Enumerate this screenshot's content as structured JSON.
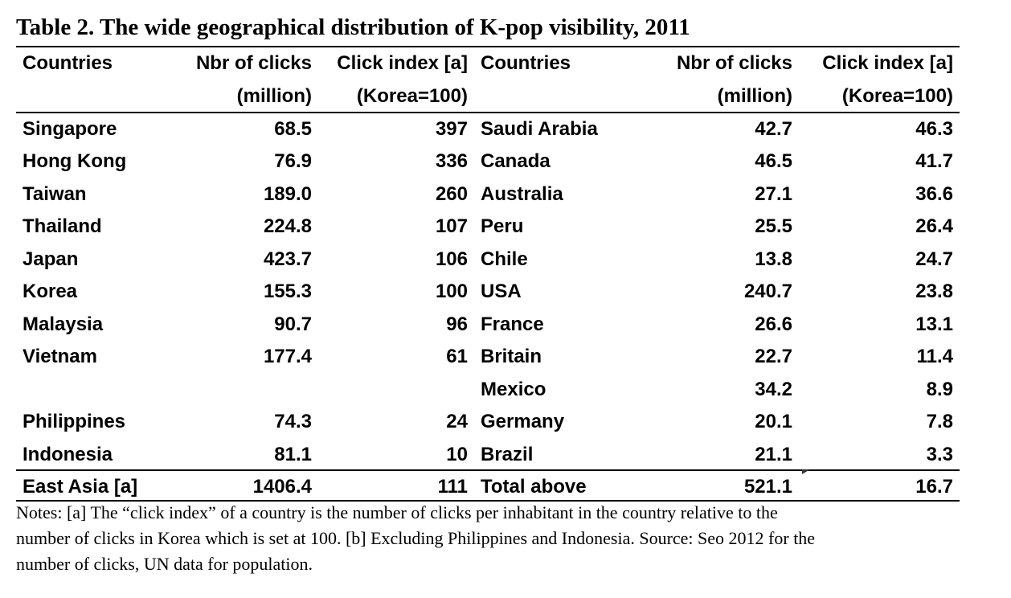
{
  "title": "Table 2. The wide geographical distribution of K-pop visibility, 2011",
  "header": {
    "left_countries": "Countries",
    "left_clicks_l1": "Nbr of clicks",
    "left_clicks_l2": "(million)",
    "left_index_l1": "Click index [a]",
    "left_index_l2": "(Korea=100)",
    "right_countries": "Countries",
    "right_clicks_l1": "Nbr of clicks",
    "right_clicks_l2": "(million)",
    "right_index_l1": "Click index [a]",
    "right_index_l2": "(Korea=100)"
  },
  "rows": [
    {
      "lc": "Singapore",
      "lk": "68.5",
      "li": "397",
      "rc": "Saudi Arabia",
      "rk": "42.7",
      "ri": "46.3"
    },
    {
      "lc": "Hong Kong",
      "lk": "76.9",
      "li": "336",
      "rc": "Canada",
      "rk": "46.5",
      "ri": "41.7"
    },
    {
      "lc": "Taiwan",
      "lk": "189.0",
      "li": "260",
      "rc": "Australia",
      "rk": "27.1",
      "ri": "36.6"
    },
    {
      "lc": "Thailand",
      "lk": "224.8",
      "li": "107",
      "rc": "Peru",
      "rk": "25.5",
      "ri": "26.4"
    },
    {
      "lc": "Japan",
      "lk": "423.7",
      "li": "106",
      "rc": "Chile",
      "rk": "13.8",
      "ri": "24.7"
    },
    {
      "lc": "Korea",
      "lk": "155.3",
      "li": "100",
      "rc": "USA",
      "rk": "240.7",
      "ri": "23.8"
    },
    {
      "lc": "Malaysia",
      "lk": "90.7",
      "li": "96",
      "rc": "France",
      "rk": "26.6",
      "ri": "13.1"
    },
    {
      "lc": "Vietnam",
      "lk": "177.4",
      "li": "61",
      "rc": "Britain",
      "rk": "22.7",
      "ri": "11.4"
    },
    {
      "lc": "",
      "lk": "",
      "li": "",
      "rc": "Mexico",
      "rk": "34.2",
      "ri": "8.9"
    },
    {
      "lc": "Philippines",
      "lk": "74.3",
      "li": "24",
      "rc": "Germany",
      "rk": "20.1",
      "ri": "7.8"
    },
    {
      "lc": "Indonesia",
      "lk": "81.1",
      "li": "10",
      "rc": "Brazil",
      "rk": "21.1",
      "ri": "3.3"
    }
  ],
  "totals": {
    "lc": "East Asia [a]",
    "lk": "1406.4",
    "li": "111",
    "rc": "Total above",
    "rk": "521.1",
    "ri": "16.7"
  },
  "notes": {
    "line1": "Notes: [a] The “click index” of a country is the number of clicks per inhabitant in the country relative to the",
    "line2": "number of clicks in Korea which is set at 100. [b] Excluding Philippines and Indonesia. Source: Seo 2012 for the",
    "line3": "number of clicks, UN data for population."
  }
}
